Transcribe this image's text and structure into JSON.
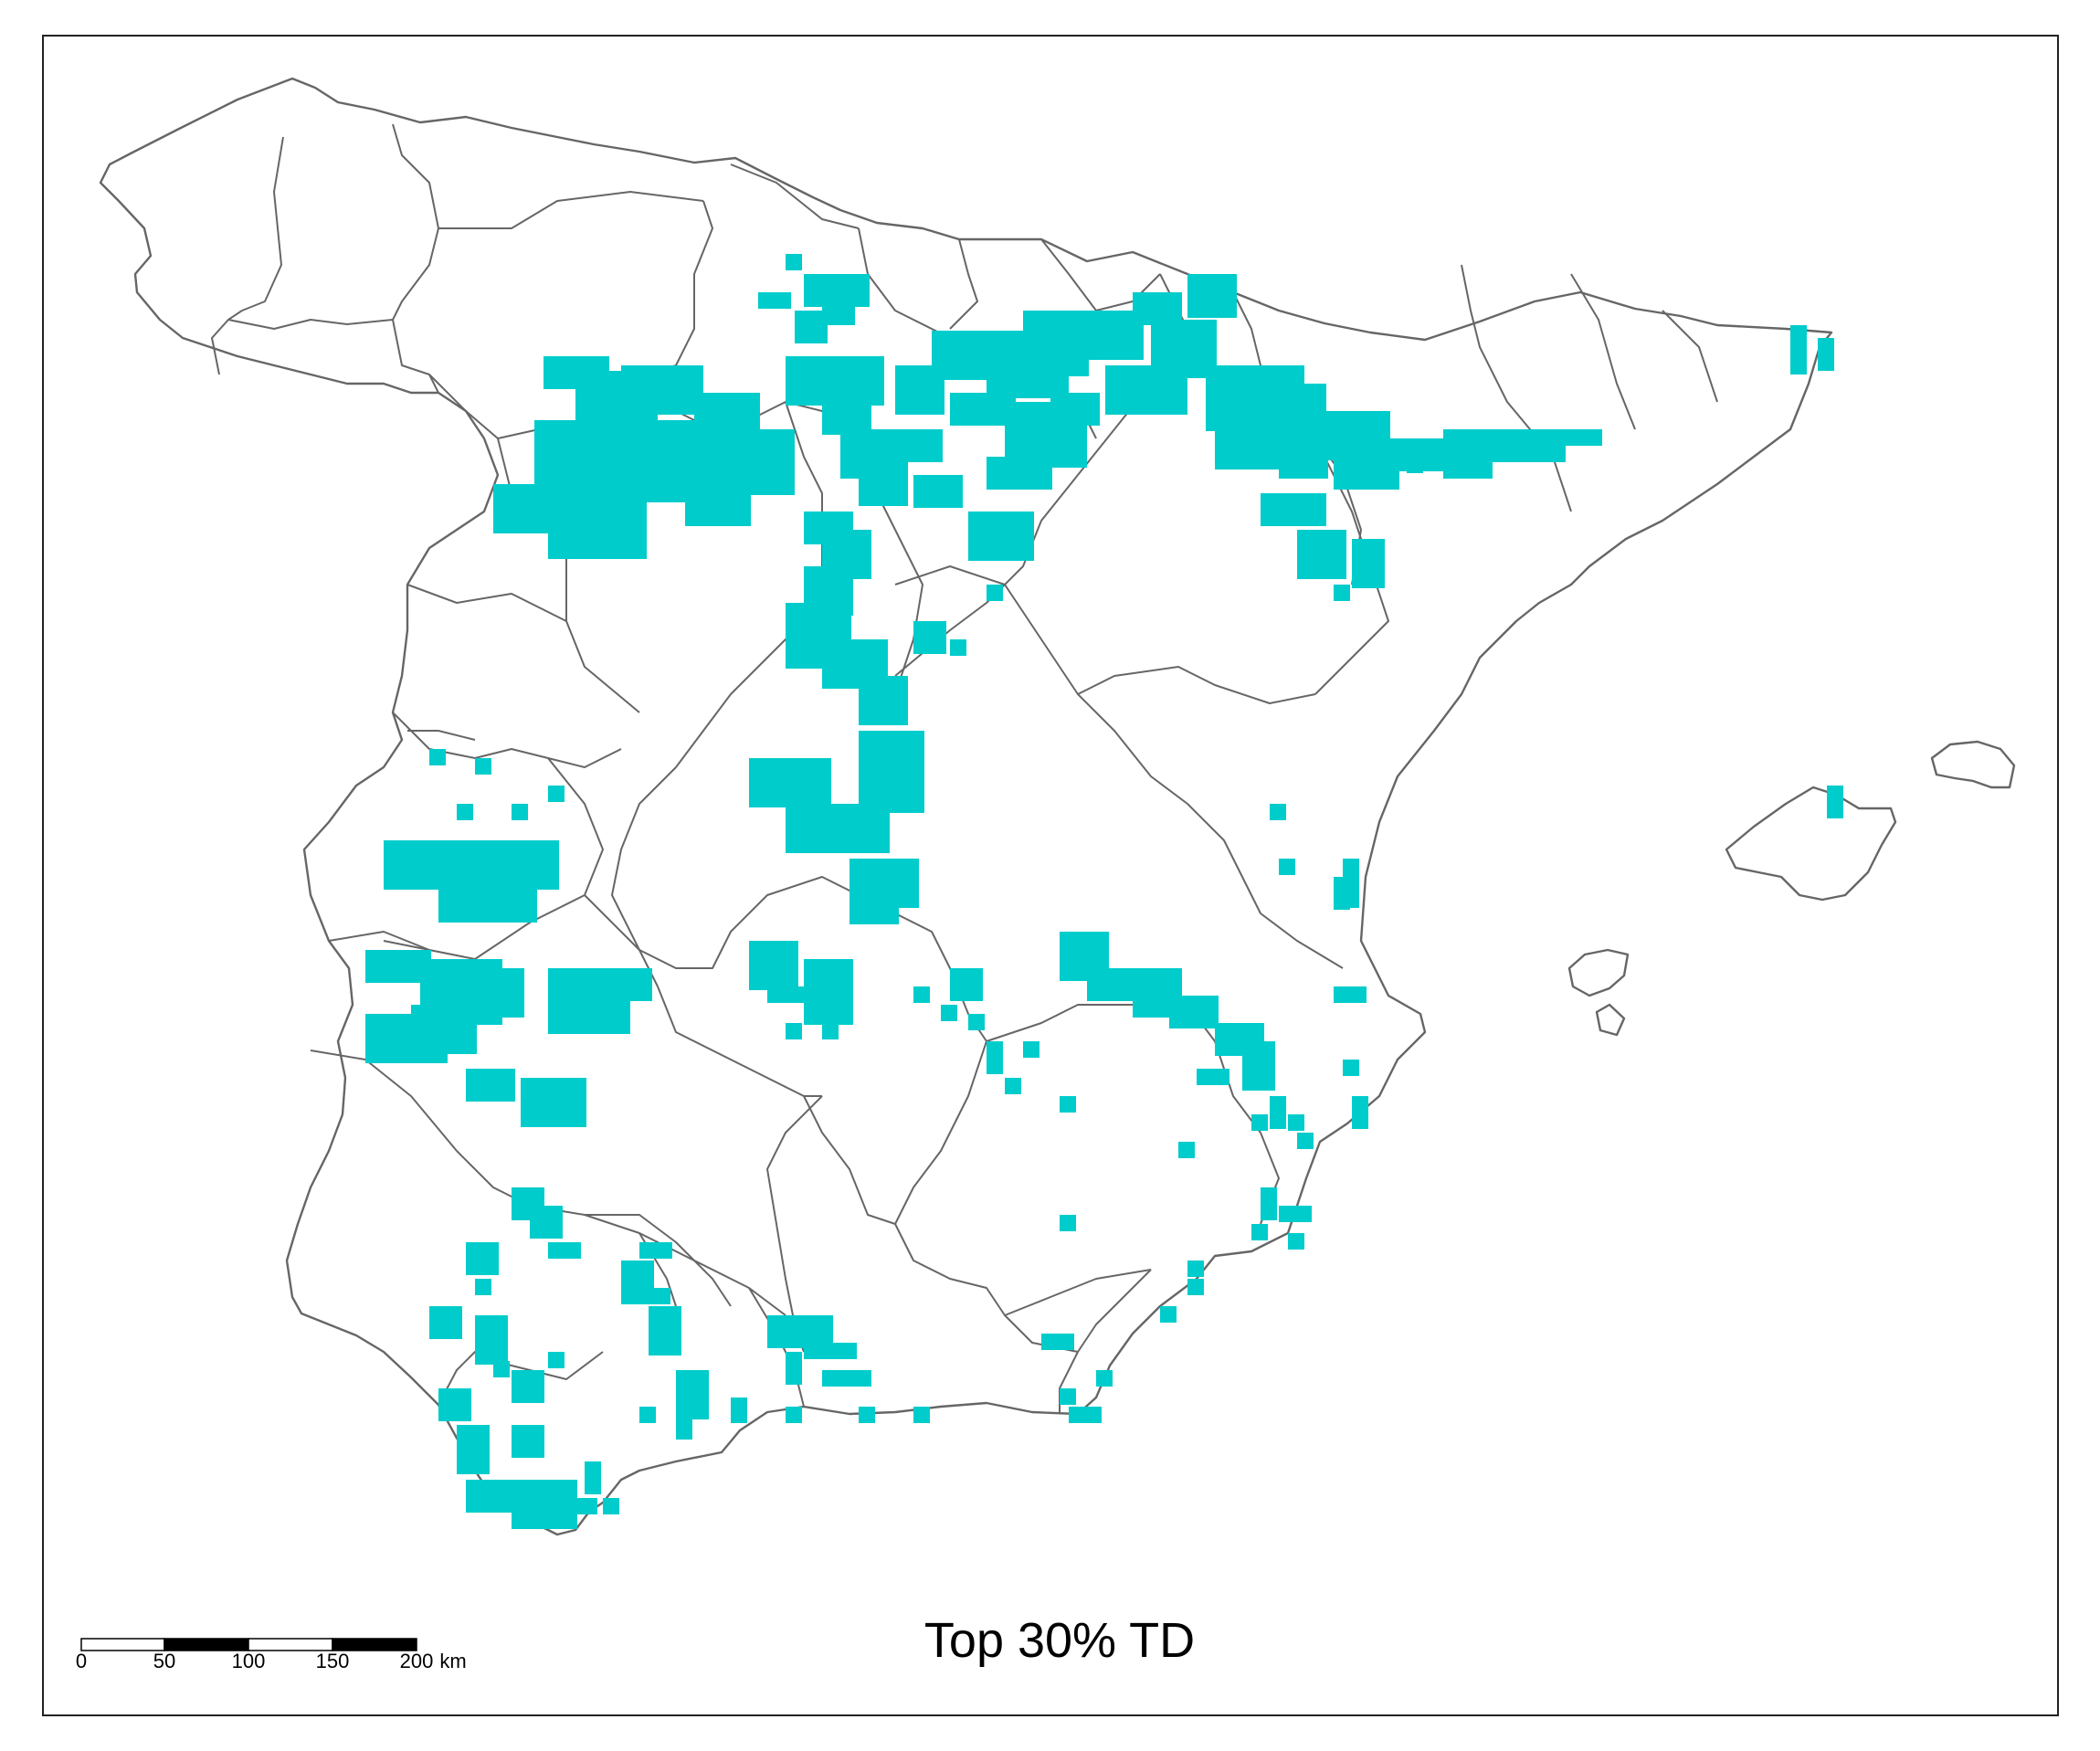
{
  "title": "Top 30% TD",
  "colors": {
    "cell_fill": "#00CCCC",
    "border_stroke": "#666666",
    "frame": "#222222",
    "background": "#FFFFFF"
  },
  "scale_bar": {
    "labels": [
      "0",
      "50",
      "100",
      "150",
      "200"
    ],
    "unit": "km"
  }
}
